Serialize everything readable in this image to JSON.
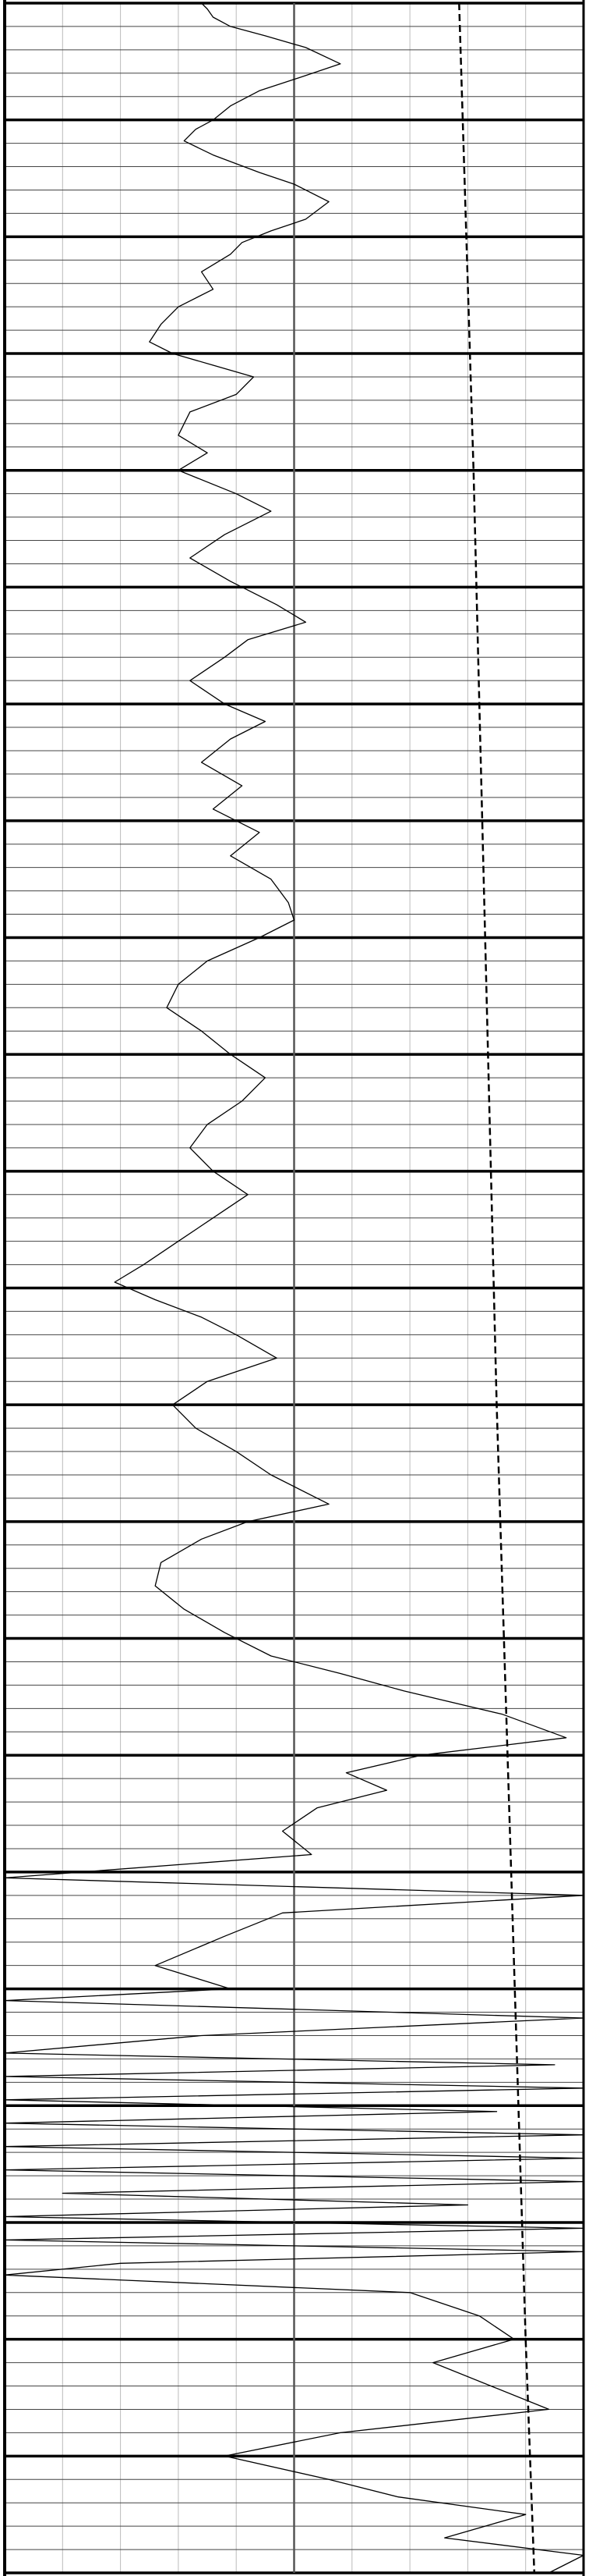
{
  "chart_data": {
    "type": "line",
    "title": "",
    "xlabel": "",
    "ylabel": "",
    "orientation": "vertical-depth",
    "grid": true,
    "xlim": [
      0,
      10
    ],
    "ylim": [
      0,
      22
    ],
    "major_every": 1,
    "minor_per_major": 5,
    "vertical_grid_x": [
      1,
      2,
      3,
      4,
      5,
      6,
      7,
      8,
      9
    ],
    "reference_line_x": 5,
    "colors": {
      "curve": "#000000",
      "reference": "#555555",
      "grid_minor": "#444444",
      "grid_major": "#000000",
      "vertical_grid": "#bbbbbb"
    },
    "series": [
      {
        "style": "solid",
        "points": [
          [
            3.4,
            0.0
          ],
          [
            3.5,
            0.05
          ],
          [
            3.6,
            0.12
          ],
          [
            3.9,
            0.2
          ],
          [
            4.5,
            0.28
          ],
          [
            5.2,
            0.38
          ],
          [
            5.8,
            0.52
          ],
          [
            5.2,
            0.62
          ],
          [
            4.4,
            0.75
          ],
          [
            3.9,
            0.88
          ],
          [
            3.6,
            1.0
          ],
          [
            3.3,
            1.08
          ],
          [
            3.1,
            1.18
          ],
          [
            3.6,
            1.3
          ],
          [
            4.4,
            1.45
          ],
          [
            5.0,
            1.55
          ],
          [
            5.6,
            1.7
          ],
          [
            5.2,
            1.85
          ],
          [
            4.6,
            1.95
          ],
          [
            4.1,
            2.05
          ],
          [
            3.9,
            2.15
          ],
          [
            3.4,
            2.3
          ],
          [
            3.6,
            2.45
          ],
          [
            3.0,
            2.6
          ],
          [
            2.7,
            2.75
          ],
          [
            2.5,
            2.9
          ],
          [
            2.9,
            3.0
          ],
          [
            3.6,
            3.1
          ],
          [
            4.3,
            3.2
          ],
          [
            4.0,
            3.35
          ],
          [
            3.2,
            3.5
          ],
          [
            3.0,
            3.7
          ],
          [
            3.5,
            3.85
          ],
          [
            3.0,
            4.0
          ],
          [
            4.0,
            4.2
          ],
          [
            4.6,
            4.35
          ],
          [
            3.8,
            4.55
          ],
          [
            3.2,
            4.75
          ],
          [
            3.9,
            4.95
          ],
          [
            4.7,
            5.15
          ],
          [
            5.2,
            5.3
          ],
          [
            4.2,
            5.45
          ],
          [
            3.8,
            5.6
          ],
          [
            3.2,
            5.8
          ],
          [
            3.8,
            6.0
          ],
          [
            4.5,
            6.15
          ],
          [
            3.9,
            6.3
          ],
          [
            3.4,
            6.5
          ],
          [
            4.1,
            6.7
          ],
          [
            3.6,
            6.9
          ],
          [
            4.4,
            7.1
          ],
          [
            3.9,
            7.3
          ],
          [
            4.6,
            7.5
          ],
          [
            4.9,
            7.7
          ],
          [
            5.0,
            7.85
          ],
          [
            4.4,
            8.0
          ],
          [
            3.5,
            8.2
          ],
          [
            3.0,
            8.4
          ],
          [
            2.8,
            8.6
          ],
          [
            3.4,
            8.8
          ],
          [
            3.9,
            9.0
          ],
          [
            4.5,
            9.2
          ],
          [
            4.1,
            9.4
          ],
          [
            3.5,
            9.6
          ],
          [
            3.2,
            9.8
          ],
          [
            3.6,
            10.0
          ],
          [
            4.2,
            10.2
          ],
          [
            3.6,
            10.4
          ],
          [
            3.0,
            10.6
          ],
          [
            2.4,
            10.8
          ],
          [
            1.9,
            10.95
          ],
          [
            2.6,
            11.1
          ],
          [
            3.4,
            11.25
          ],
          [
            4.0,
            11.4
          ],
          [
            4.7,
            11.6
          ],
          [
            3.5,
            11.8
          ],
          [
            2.9,
            12.0
          ],
          [
            3.3,
            12.2
          ],
          [
            4.0,
            12.4
          ],
          [
            4.6,
            12.6
          ],
          [
            5.6,
            12.85
          ],
          [
            4.2,
            13.0
          ],
          [
            3.4,
            13.15
          ],
          [
            2.7,
            13.35
          ],
          [
            2.6,
            13.55
          ],
          [
            3.1,
            13.75
          ],
          [
            3.8,
            13.95
          ],
          [
            4.6,
            14.15
          ],
          [
            5.8,
            14.3
          ],
          [
            6.9,
            14.45
          ],
          [
            8.6,
            14.65
          ],
          [
            9.7,
            14.85
          ],
          [
            7.2,
            15.0
          ],
          [
            5.9,
            15.15
          ],
          [
            6.6,
            15.3
          ],
          [
            5.4,
            15.45
          ],
          [
            4.8,
            15.65
          ],
          [
            5.3,
            15.85
          ],
          [
            0.0,
            16.05
          ],
          [
            10.0,
            16.2
          ],
          [
            4.8,
            16.35
          ],
          [
            3.8,
            16.55
          ],
          [
            2.6,
            16.8
          ],
          [
            3.9,
            17.0
          ],
          [
            0.0,
            17.1
          ],
          [
            10.0,
            17.25
          ],
          [
            3.4,
            17.4
          ],
          [
            0.0,
            17.55
          ],
          [
            9.5,
            17.65
          ],
          [
            0.0,
            17.75
          ],
          [
            10.0,
            17.85
          ],
          [
            0.0,
            17.95
          ],
          [
            8.5,
            18.05
          ],
          [
            0.0,
            18.15
          ],
          [
            10.0,
            18.25
          ],
          [
            0.0,
            18.35
          ],
          [
            10.0,
            18.45
          ],
          [
            0.0,
            18.55
          ],
          [
            10.0,
            18.65
          ],
          [
            1.0,
            18.75
          ],
          [
            8.0,
            18.85
          ],
          [
            0.0,
            18.95
          ],
          [
            10.0,
            19.05
          ],
          [
            0.0,
            19.15
          ],
          [
            10.0,
            19.25
          ],
          [
            2.0,
            19.35
          ],
          [
            0.0,
            19.45
          ],
          [
            7.0,
            19.6
          ],
          [
            8.2,
            19.8
          ],
          [
            8.8,
            20.0
          ],
          [
            7.4,
            20.2
          ],
          [
            8.4,
            20.4
          ],
          [
            9.4,
            20.6
          ],
          [
            5.8,
            20.8
          ],
          [
            3.8,
            21.0
          ],
          [
            5.6,
            21.2
          ],
          [
            6.8,
            21.35
          ],
          [
            9.0,
            21.5
          ],
          [
            7.6,
            21.7
          ],
          [
            10.0,
            21.85
          ],
          [
            9.4,
            22.0
          ]
        ]
      },
      {
        "style": "dashed",
        "points": [
          [
            7.85,
            0.0
          ],
          [
            8.1,
            4.0
          ],
          [
            8.3,
            8.0
          ],
          [
            8.5,
            12.0
          ],
          [
            8.75,
            16.0
          ],
          [
            9.0,
            20.0
          ],
          [
            9.15,
            22.0
          ]
        ]
      }
    ]
  }
}
